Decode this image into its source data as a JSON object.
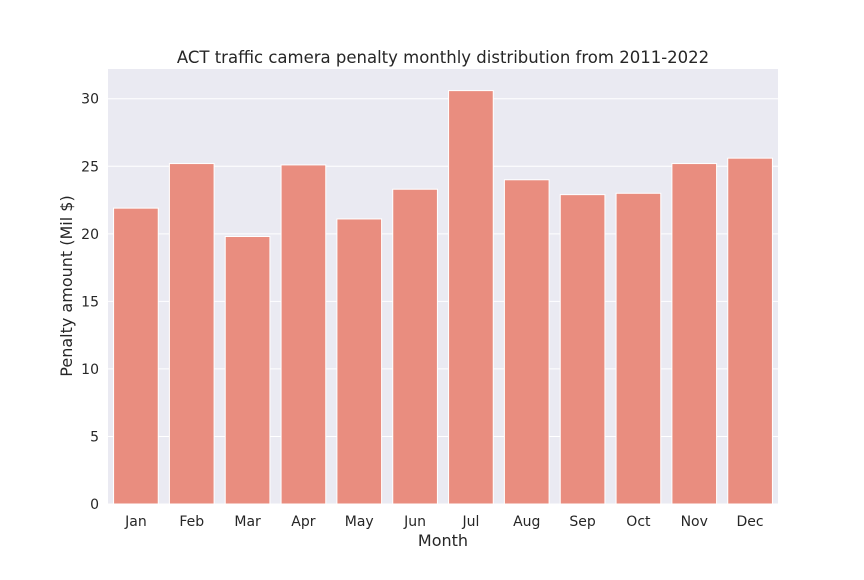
{
  "chart_data": {
    "type": "bar",
    "title": "ACT traffic camera penalty monthly distribution from 2011-2022",
    "xlabel": "Month",
    "ylabel": "Penalty amount (Mil $)",
    "categories": [
      "Jan",
      "Feb",
      "Mar",
      "Apr",
      "May",
      "Jun",
      "Jul",
      "Aug",
      "Sep",
      "Oct",
      "Nov",
      "Dec"
    ],
    "values": [
      21.9,
      25.2,
      19.8,
      25.1,
      21.1,
      23.3,
      30.6,
      24.0,
      22.9,
      23.0,
      25.2,
      25.6
    ],
    "ylim": [
      0,
      32.2
    ],
    "yticks": [
      0,
      5,
      10,
      15,
      20,
      25,
      30
    ],
    "grid": true,
    "colors": {
      "bar": "#e98d7f",
      "plot_background": "#eaeaf2",
      "grid": "#ffffff"
    }
  }
}
